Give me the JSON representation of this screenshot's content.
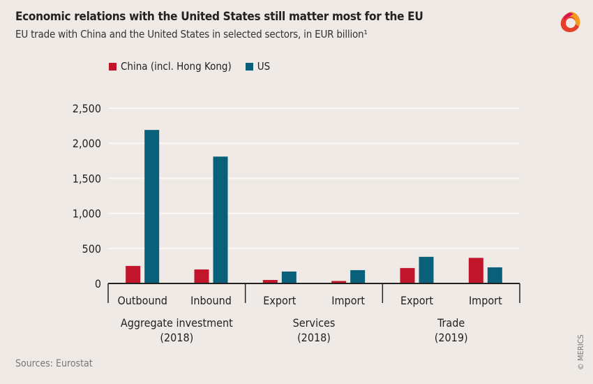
{
  "chart_data": {
    "type": "bar",
    "title": "Economic relations with the United States still matter most for the EU",
    "subtitle": "EU trade with China and the United States in selected sectors, in EUR billion¹",
    "groups": [
      {
        "label_line1": "Aggregate investment",
        "label_line2": "(2018)",
        "categories": [
          "Outbound",
          "Inbound"
        ]
      },
      {
        "label_line1": "Services",
        "label_line2": "(2018)",
        "categories": [
          "Export",
          "Import"
        ]
      },
      {
        "label_line1": "Trade",
        "label_line2": "(2019)",
        "categories": [
          "Export",
          "Import"
        ]
      }
    ],
    "series": [
      {
        "name": "China (incl. Hong Kong)",
        "color": "#c0152a",
        "values": [
          250,
          200,
          50,
          35,
          220,
          365
        ]
      },
      {
        "name": "US",
        "color": "#0b6079",
        "values": [
          2190,
          1810,
          170,
          190,
          380,
          230
        ]
      }
    ],
    "yticks": [
      "0",
      "500",
      "1,000",
      "1,500",
      "2,000",
      "2,500"
    ],
    "ylim": [
      0,
      2500
    ],
    "grid": true,
    "legend_position": "top-left"
  },
  "source": "Sources: Eurostat",
  "credit": "© MERICS"
}
